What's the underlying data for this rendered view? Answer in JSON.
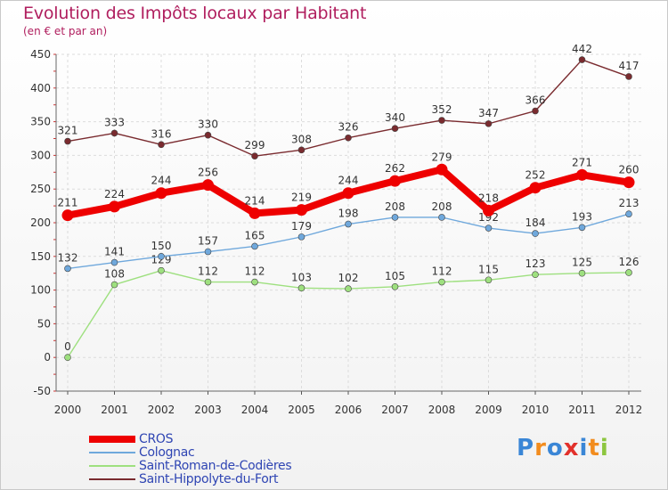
{
  "header": {
    "title": "Evolution des Impôts locaux par Habitant",
    "subtitle": "(en € et par an)"
  },
  "logo": {
    "text": "Proxiti",
    "letters": [
      {
        "ch": "P",
        "color": "#3a86d6"
      },
      {
        "ch": "r",
        "color": "#f28c1e"
      },
      {
        "ch": "o",
        "color": "#3a86d6"
      },
      {
        "ch": "x",
        "color": "#e2312b"
      },
      {
        "ch": "i",
        "color": "#3a86d6"
      },
      {
        "ch": "t",
        "color": "#f28c1e"
      },
      {
        "ch": "i",
        "color": "#8dc63f"
      }
    ]
  },
  "chart_data": {
    "type": "line",
    "title": "Evolution des Impôts locaux par Habitant",
    "subtitle": "(en € et par an)",
    "xlabel": "",
    "ylabel": "",
    "ylim": [
      -50,
      450
    ],
    "yticks": [
      -50,
      0,
      50,
      100,
      150,
      200,
      250,
      300,
      350,
      400,
      450
    ],
    "grid": true,
    "legend_position": "bottom-left",
    "categories": [
      "2000",
      "2001",
      "2002",
      "2003",
      "2004",
      "2005",
      "2006",
      "2007",
      "2008",
      "2009",
      "2010",
      "2011",
      "2012"
    ],
    "series": [
      {
        "name": "Saint-Hippolyte-du-Fort",
        "color": "#7a2b2f",
        "style": "thin",
        "values": [
          321,
          333,
          316,
          330,
          299,
          308,
          326,
          340,
          352,
          347,
          366,
          442,
          417
        ]
      },
      {
        "name": "Saint-Roman-de-Codières",
        "color": "#9ee07f",
        "style": "thin",
        "values": [
          0,
          108,
          129,
          112,
          112,
          103,
          102,
          105,
          112,
          115,
          123,
          125,
          126
        ]
      },
      {
        "name": "Colognac",
        "color": "#6fa8dc",
        "style": "thin",
        "values": [
          132,
          141,
          150,
          157,
          165,
          179,
          198,
          208,
          208,
          192,
          184,
          193,
          213
        ]
      },
      {
        "name": "CROS",
        "color": "#ee0000",
        "style": "thick",
        "values": [
          211,
          224,
          244,
          256,
          214,
          219,
          244,
          262,
          279,
          218,
          252,
          271,
          260
        ]
      }
    ],
    "legend_order": [
      "CROS",
      "Colognac",
      "Saint-Roman-de-Codières",
      "Saint-Hippolyte-du-Fort"
    ]
  }
}
